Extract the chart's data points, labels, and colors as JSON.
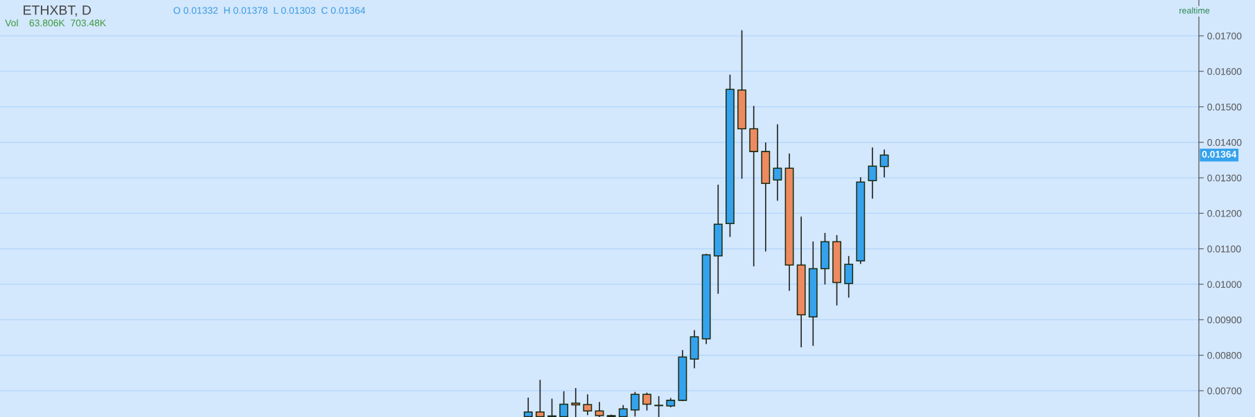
{
  "chart_data": {
    "type": "candlestick",
    "title": "ETHXBT, D",
    "annotations": [
      "O 0.01332  H 0.01378  L 0.01303  C 0.01364",
      "Vol    63.806K  703.48K",
      "realtime",
      "0.01364"
    ],
    "categories": [
      null,
      null,
      null,
      null,
      null,
      null,
      null,
      null,
      null,
      null,
      null,
      null,
      null,
      null,
      null,
      null,
      null,
      null,
      null,
      null,
      null,
      null,
      null,
      null,
      null,
      null,
      null,
      null,
      null,
      null,
      null,
      null,
      null,
      null,
      null,
      null,
      null,
      null,
      null,
      null,
      null,
      null,
      null,
      null,
      null,
      null,
      null,
      null,
      null,
      null,
      null,
      null,
      null,
      null,
      null,
      null,
      null,
      null,
      null,
      null,
      null,
      null,
      null,
      null,
      null,
      null,
      null,
      null,
      null,
      null,
      null,
      null,
      null,
      null,
      null,
      null,
      null,
      null,
      null,
      null,
      null,
      null,
      null,
      null,
      null,
      null,
      null,
      null,
      null,
      null,
      null,
      null,
      null,
      null,
      null,
      null,
      null,
      null,
      null,
      null,
      null
    ],
    "ohlc": [
      null,
      null,
      null,
      null,
      null,
      null,
      null,
      null,
      null,
      null,
      null,
      null,
      null,
      null,
      null,
      null,
      null,
      null,
      null,
      null,
      null,
      null,
      null,
      null,
      null,
      null,
      null,
      null,
      null,
      null,
      null,
      null,
      null,
      null,
      null,
      null,
      null,
      null,
      null,
      null,
      null,
      null,
      null,
      null,
      [
        0.00627,
        0.00679,
        0.00627,
        0.0064
      ],
      [
        0.0064,
        0.00729,
        0.00627,
        0.00627
      ],
      [
        0.00627,
        0.00676,
        0.00627,
        0.00629
      ],
      [
        0.00627,
        0.00697,
        0.00627,
        0.00662
      ],
      [
        0.00665,
        0.00706,
        0.00627,
        0.0066
      ],
      [
        0.00661,
        0.00688,
        0.00633,
        0.00643
      ],
      [
        0.00643,
        0.00667,
        0.00627,
        0.0063
      ],
      [
        0.0063,
        0.00631,
        0.00627,
        0.00627
      ],
      [
        0.00627,
        0.00658,
        0.00627,
        0.00649
      ],
      [
        0.00646,
        0.00695,
        0.00629,
        0.0069
      ],
      [
        0.0069,
        0.00693,
        0.00646,
        0.00662
      ],
      [
        0.00658,
        0.00683,
        0.00627,
        0.00659
      ],
      [
        0.00657,
        0.00678,
        0.00655,
        0.00673
      ],
      [
        0.00673,
        0.00813,
        0.00673,
        0.00795
      ],
      [
        0.00789,
        0.00869,
        0.00765,
        0.00852
      ],
      [
        0.00846,
        0.01084,
        0.00833,
        0.01083
      ],
      [
        0.0108,
        0.01279,
        0.00975,
        0.01169
      ],
      [
        0.01171,
        0.01589,
        0.01135,
        0.01549
      ],
      [
        0.01547,
        0.01714,
        0.01299,
        0.01438
      ],
      [
        0.01438,
        0.01501,
        0.01052,
        0.01374
      ],
      [
        0.01374,
        0.01398,
        0.01094,
        0.01284
      ],
      [
        0.01294,
        0.01449,
        0.01237,
        0.01327
      ],
      [
        0.01327,
        0.01367,
        0.00983,
        0.01054
      ],
      [
        0.01054,
        0.01189,
        0.00824,
        0.00914
      ],
      [
        0.00908,
        0.01119,
        0.00828,
        0.01044
      ],
      [
        0.01044,
        0.01143,
        0.01001,
        0.0112
      ],
      [
        0.0112,
        0.01137,
        0.00942,
        0.01005
      ],
      [
        0.01002,
        0.01078,
        0.00964,
        0.01056
      ],
      [
        0.01066,
        0.013,
        0.01059,
        0.01288
      ],
      [
        0.01292,
        0.01384,
        0.01243,
        0.01333
      ],
      [
        0.01332,
        0.01378,
        0.01303,
        0.01364
      ],
      null,
      null,
      null,
      null,
      null,
      null,
      null,
      null,
      null,
      null,
      null,
      null,
      null,
      null,
      null,
      null,
      null,
      null,
      null,
      null,
      null,
      null,
      null,
      null,
      null,
      null
    ],
    "colors": [
      null,
      null,
      null,
      null,
      null,
      null,
      null,
      null,
      null,
      null,
      null,
      null,
      null,
      null,
      null,
      null,
      null,
      null,
      null,
      null,
      null,
      null,
      null,
      null,
      null,
      null,
      null,
      null,
      null,
      null,
      null,
      null,
      null,
      null,
      null,
      null,
      null,
      null,
      null,
      null,
      null,
      null,
      null,
      null,
      "#35a2ee",
      "#ed8a5f",
      "#35a2ee",
      "#35a2ee",
      "#ed8a5f",
      "#ed8a5f",
      "#ed8a5f",
      "#ed8a5f",
      "#35a2ee",
      "#35a2ee",
      "#ed8a5f",
      "#35a2ee",
      "#35a2ee",
      "#35a2ee",
      "#35a2ee",
      "#35a2ee",
      "#35a2ee",
      "#35a2ee",
      "#ed8a5f",
      "#ed8a5f",
      "#ed8a5f",
      "#35a2ee",
      "#ed8a5f",
      "#ed8a5f",
      "#35a2ee",
      "#35a2ee",
      "#ed8a5f",
      "#35a2ee",
      "#35a2ee",
      "#35a2ee",
      "#35a2ee",
      null,
      null,
      null,
      null,
      null,
      null,
      null,
      null,
      null,
      null,
      null,
      null,
      null,
      null,
      null,
      null,
      null,
      null,
      null,
      null,
      null,
      null,
      null,
      null,
      null,
      null
    ],
    "ylim": [
      0.00626,
      0.01801
    ],
    "yticks": [
      {
        "value": 0.007,
        "label": "0.00700"
      },
      {
        "value": 0.008,
        "label": "0.00800"
      },
      {
        "value": 0.009,
        "label": "0.00900"
      },
      {
        "value": 0.01,
        "label": "0.01000"
      },
      {
        "value": 0.011,
        "label": "0.01100"
      },
      {
        "value": 0.012,
        "label": "0.01200"
      },
      {
        "value": 0.013,
        "label": "0.01300"
      },
      {
        "value": 0.014,
        "label": "0.01400"
      },
      {
        "value": 0.015,
        "label": "0.01500"
      },
      {
        "value": 0.016,
        "label": "0.01600"
      },
      {
        "value": 0.017,
        "label": "0.01700"
      }
    ],
    "grid": "y"
  }
}
